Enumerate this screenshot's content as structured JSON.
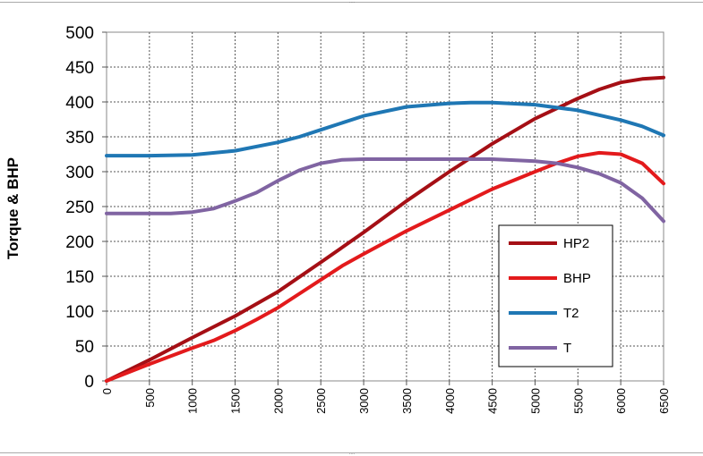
{
  "chart_data": {
    "type": "line",
    "title": "",
    "xlabel": "",
    "ylabel": "Torque & BHP",
    "xlim": [
      0,
      6500
    ],
    "ylim": [
      0,
      500
    ],
    "x_ticks": [
      "0",
      "500",
      "1000",
      "1500",
      "2000",
      "2500",
      "3000",
      "3500",
      "4000",
      "4500",
      "5000",
      "5500",
      "6000",
      "6500"
    ],
    "y_ticks": [
      "0",
      "50",
      "100",
      "150",
      "200",
      "250",
      "300",
      "350",
      "400",
      "450",
      "500"
    ],
    "grid": true,
    "legend_position": "right",
    "series": [
      {
        "name": "HP2",
        "color": "#a50f15",
        "x": [
          0,
          500,
          1000,
          1500,
          2000,
          2500,
          3000,
          3500,
          4000,
          4500,
          5000,
          5500,
          5750,
          6000,
          6250,
          6500
        ],
        "y": [
          0,
          30,
          62,
          93,
          128,
          170,
          213,
          258,
          300,
          340,
          376,
          405,
          418,
          428,
          433,
          435
        ]
      },
      {
        "name": "BHP",
        "color": "#e31a1c",
        "x": [
          0,
          500,
          1000,
          1250,
          1500,
          1750,
          2000,
          2250,
          2500,
          2750,
          3000,
          3500,
          4000,
          4500,
          5000,
          5250,
          5500,
          5750,
          6000,
          6250,
          6500
        ],
        "y": [
          0,
          24,
          47,
          58,
          72,
          88,
          105,
          125,
          145,
          165,
          182,
          215,
          245,
          275,
          300,
          312,
          322,
          327,
          325,
          312,
          283
        ]
      },
      {
        "name": "T2",
        "color": "#1f77b4",
        "x": [
          0,
          500,
          1000,
          1500,
          2000,
          2250,
          2500,
          3000,
          3500,
          4000,
          4250,
          4500,
          5000,
          5500,
          6000,
          6250,
          6500
        ],
        "y": [
          323,
          323,
          324,
          330,
          342,
          350,
          360,
          380,
          393,
          398,
          399,
          399,
          396,
          388,
          374,
          365,
          352
        ]
      },
      {
        "name": "T",
        "color": "#8064a2",
        "x": [
          0,
          500,
          750,
          1000,
          1250,
          1500,
          1750,
          2000,
          2250,
          2500,
          2750,
          3000,
          3500,
          4000,
          4500,
          5000,
          5250,
          5500,
          5750,
          6000,
          6250,
          6500
        ],
        "y": [
          240,
          240,
          240,
          242,
          247,
          258,
          270,
          287,
          302,
          312,
          317,
          318,
          318,
          318,
          318,
          315,
          312,
          306,
          297,
          284,
          262,
          229
        ]
      }
    ]
  }
}
